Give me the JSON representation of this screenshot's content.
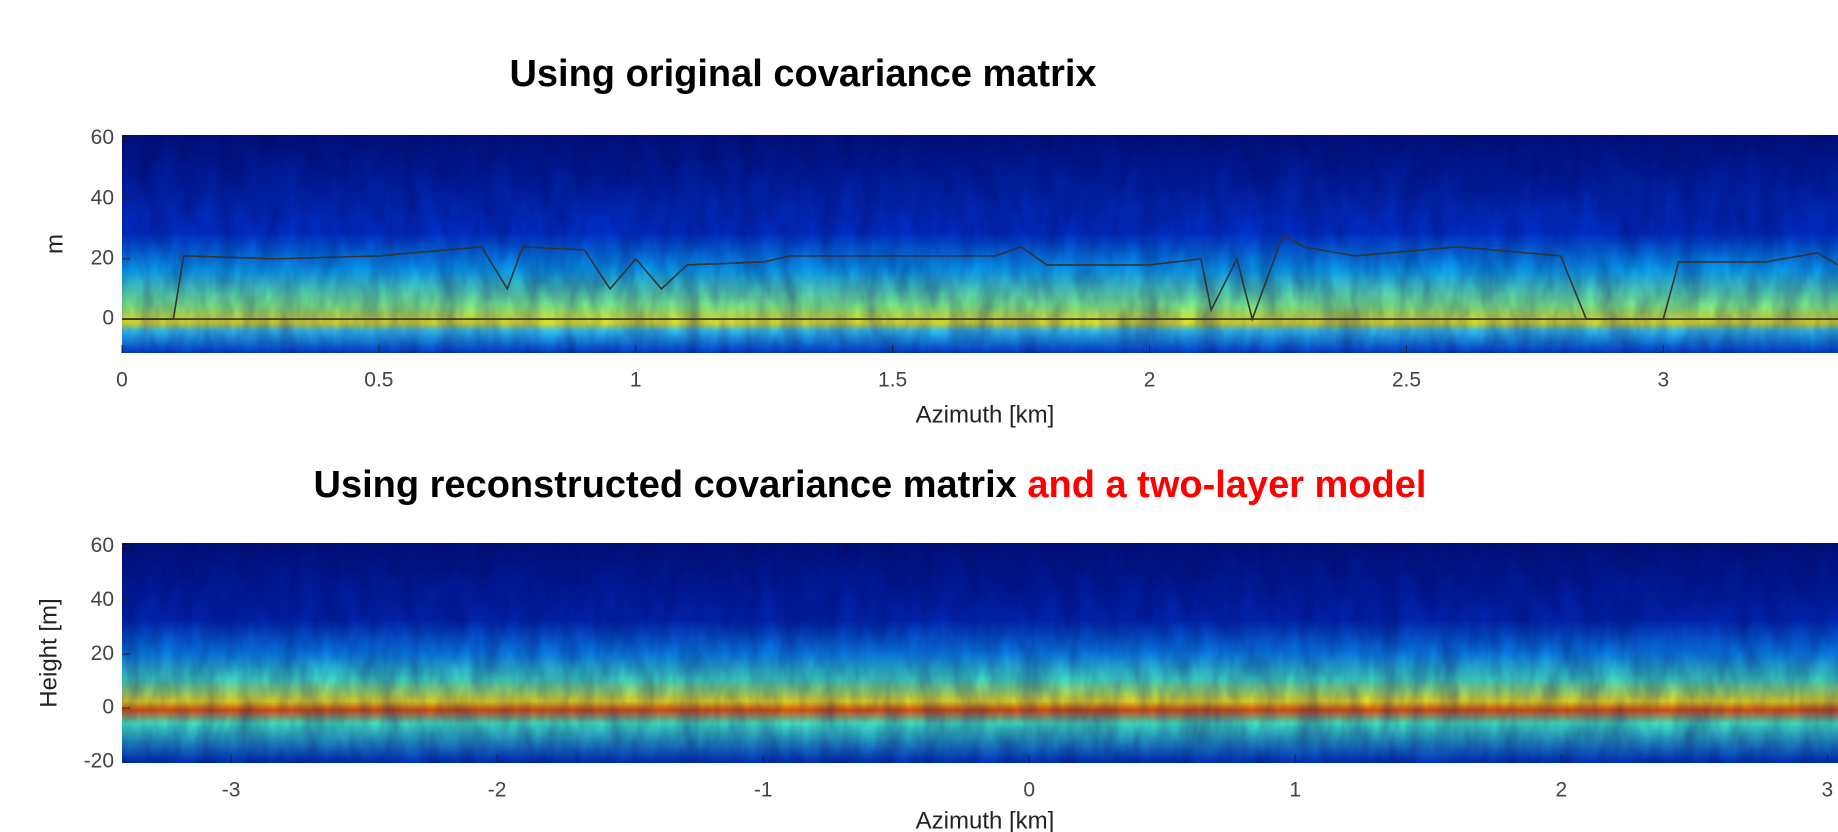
{
  "chart_data": [
    {
      "type": "line",
      "title": "Using original covariance matrix",
      "xlabel": "Azimuth [km]",
      "ylabel": "m",
      "xlim": [
        0,
        3.34
      ],
      "ylim": [
        -11.3,
        61.2
      ],
      "xticks": [
        0,
        0.5,
        1,
        1.5,
        2,
        2.5,
        3
      ],
      "yticks": [
        0,
        20,
        40,
        60
      ],
      "series": [
        {
          "color": "#333333",
          "x": [
            0,
            0.1,
            0.12,
            0.3,
            0.5,
            0.7,
            0.75,
            0.78,
            0.9,
            0.95,
            1.0,
            1.05,
            1.1,
            1.25,
            1.3,
            1.5,
            1.7,
            1.75,
            1.8,
            2.0,
            2.1,
            2.12,
            2.17,
            2.2,
            2.26,
            2.3,
            2.4,
            2.6,
            2.8,
            2.85,
            3.0,
            3.03,
            3.2,
            3.3,
            3.34
          ],
          "values": [
            0,
            0,
            21,
            20,
            21,
            24,
            10,
            24,
            23,
            10,
            20,
            10,
            18,
            19,
            21,
            21,
            21,
            24,
            18,
            18,
            20,
            3,
            20,
            0,
            28,
            24,
            21,
            24,
            21,
            0,
            0,
            19,
            19,
            22,
            18
          ]
        },
        {
          "color": "#333333",
          "x": [
            0,
            3.34
          ],
          "values": [
            0,
            0
          ]
        }
      ]
    },
    {
      "type": "heatmap",
      "title_parts": [
        "Using reconstructed covariance matrix",
        "and a two-layer model"
      ],
      "xlabel": "Azimuth [km]",
      "ylabel": "Height [m]",
      "xlim": [
        -3.41,
        3.04
      ],
      "ylim": [
        -20.4,
        61.3
      ],
      "xticks": [
        -3,
        -2,
        -1,
        0,
        1,
        2,
        3
      ],
      "yticks": [
        -20,
        0,
        20,
        40,
        60
      ]
    }
  ]
}
